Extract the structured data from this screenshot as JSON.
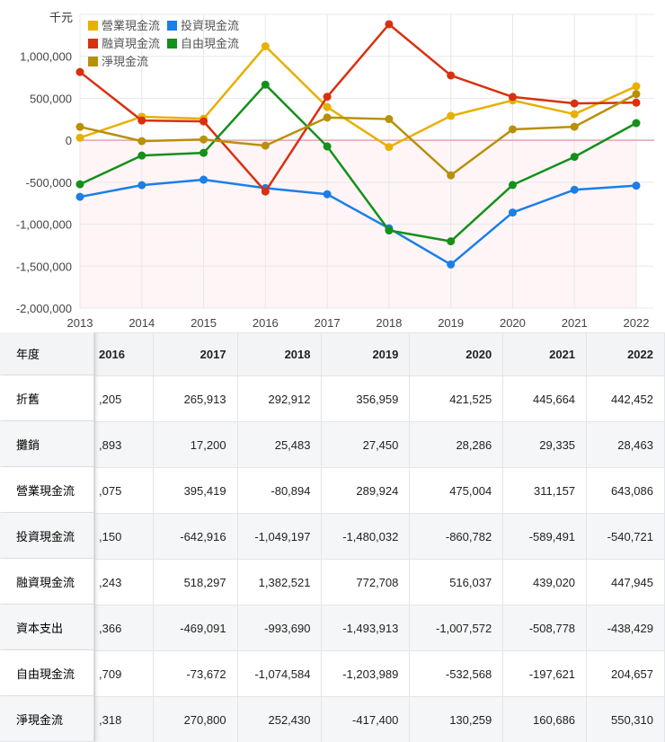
{
  "chart_data": {
    "type": "line",
    "unit_label": "千元",
    "x": [
      2013,
      2014,
      2015,
      2016,
      2017,
      2018,
      2019,
      2020,
      2021,
      2022
    ],
    "ylim": [
      -2000000,
      1500000
    ],
    "yticks": [
      -2000000,
      -1500000,
      -1000000,
      -500000,
      0,
      500000,
      1000000
    ],
    "ytick_labels": [
      "-2,000,000",
      "-1,500,000",
      "-1,000,000",
      "-500,000",
      "0",
      "500,000",
      "1,000,000"
    ],
    "legend_position": "top-left",
    "grid": true,
    "series": [
      {
        "name": "營業現金流",
        "color": "#e8b000",
        "values": [
          30000,
          280000,
          257000,
          1120000,
          395419,
          -80894,
          289924,
          475004,
          311157,
          643086
        ]
      },
      {
        "name": "投資現金流",
        "color": "#1a7fe6",
        "values": [
          -674000,
          -535000,
          -470000,
          -570000,
          -642916,
          -1049197,
          -1480032,
          -860782,
          -589491,
          -540721
        ]
      },
      {
        "name": "融資現金流",
        "color": "#d9300f",
        "values": [
          813000,
          235000,
          225000,
          -610000,
          518297,
          1382521,
          772708,
          516037,
          439020,
          447945
        ]
      },
      {
        "name": "自由現金流",
        "color": "#13911a",
        "values": [
          -524000,
          -182000,
          -150000,
          663000,
          -73672,
          -1074584,
          -1203989,
          -532568,
          -197621,
          204657
        ]
      },
      {
        "name": "淨現金流",
        "color": "#b8900a",
        "values": [
          160000,
          -10000,
          10000,
          -64000,
          270800,
          252430,
          -417400,
          130259,
          160686,
          550310
        ]
      }
    ]
  },
  "table": {
    "header_label": "年度",
    "years": [
      "2016",
      "2017",
      "2018",
      "2019",
      "2020",
      "2021",
      "2022"
    ],
    "rows": [
      {
        "label": "折舊",
        "values": [
          ",205",
          "265,913",
          "292,912",
          "356,959",
          "421,525",
          "445,664",
          "442,452"
        ]
      },
      {
        "label": "攤銷",
        "values": [
          ",893",
          "17,200",
          "25,483",
          "27,450",
          "28,286",
          "29,335",
          "28,463"
        ]
      },
      {
        "label": "營業現金流",
        "values": [
          ",075",
          "395,419",
          "-80,894",
          "289,924",
          "475,004",
          "311,157",
          "643,086"
        ]
      },
      {
        "label": "投資現金流",
        "values": [
          ",150",
          "-642,916",
          "-1,049,197",
          "-1,480,032",
          "-860,782",
          "-589,491",
          "-540,721"
        ]
      },
      {
        "label": "融資現金流",
        "values": [
          ",243",
          "518,297",
          "1,382,521",
          "772,708",
          "516,037",
          "439,020",
          "447,945"
        ]
      },
      {
        "label": "資本支出",
        "values": [
          ",366",
          "-469,091",
          "-993,690",
          "-1,493,913",
          "-1,007,572",
          "-508,778",
          "-438,429"
        ]
      },
      {
        "label": "自由現金流",
        "values": [
          ",709",
          "-73,672",
          "-1,074,584",
          "-1,203,989",
          "-532,568",
          "-197,621",
          "204,657"
        ]
      },
      {
        "label": "淨現金流",
        "values": [
          ",318",
          "270,800",
          "252,430",
          "-417,400",
          "130,259",
          "160,686",
          "550,310"
        ]
      }
    ]
  }
}
